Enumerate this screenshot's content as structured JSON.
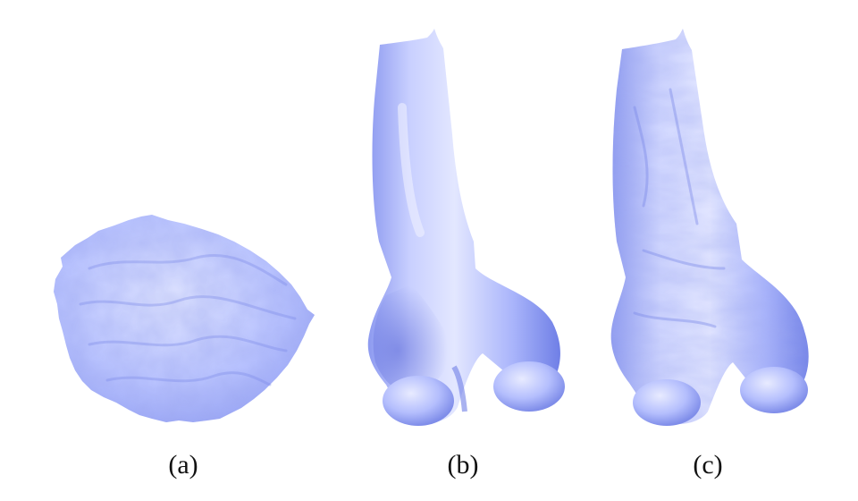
{
  "figure": {
    "panels": [
      {
        "id": "a",
        "caption": "(a)"
      },
      {
        "id": "b",
        "caption": "(b)"
      },
      {
        "id": "c",
        "caption": "(c)"
      }
    ]
  },
  "colors": {
    "surface_light": "#e4e8ff",
    "surface_mid": "#b8c2ff",
    "surface_dark": "#6f7fe6",
    "surface_deep": "#5563d6",
    "background": "#ffffff"
  }
}
